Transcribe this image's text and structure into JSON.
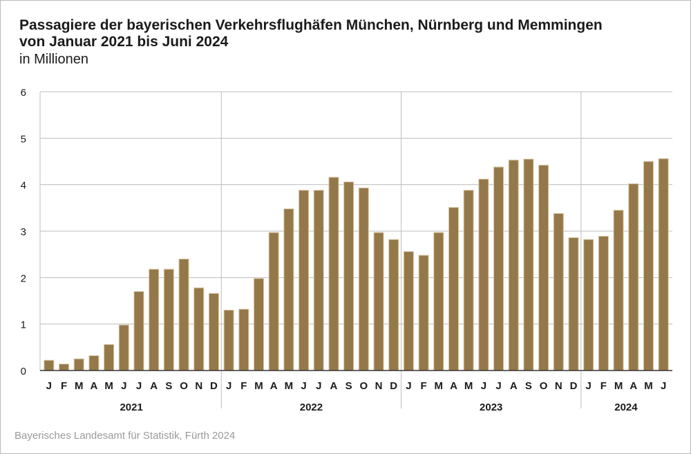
{
  "title_line1": "Passagiere der bayerischen Verkehrsflughäfen München, Nürnberg und Memmingen",
  "title_line2": "von Januar 2021 bis Juni 2024",
  "subtitle": "in Millionen",
  "source": "Bayerisches Landesamt für Statistik, Fürth 2024",
  "colors": {
    "bar": "#95784a",
    "bar_edge": "#d8c7a4",
    "grid": "#bdbdbd",
    "text": "#1a1a1a"
  },
  "chart_data": {
    "type": "bar",
    "title": "Passagiere der bayerischen Verkehrsflughäfen München, Nürnberg und Memmingen von Januar 2021 bis Juni 2024",
    "ylabel": "in Millionen",
    "ylim": [
      0,
      6
    ],
    "yticks": [
      0,
      1,
      2,
      3,
      4,
      5,
      6
    ],
    "grid": true,
    "categories": [
      "J",
      "F",
      "M",
      "A",
      "M",
      "J",
      "J",
      "A",
      "S",
      "O",
      "N",
      "D",
      "J",
      "F",
      "M",
      "A",
      "M",
      "J",
      "J",
      "A",
      "S",
      "O",
      "N",
      "D",
      "J",
      "F",
      "M",
      "A",
      "M",
      "J",
      "J",
      "A",
      "S",
      "O",
      "N",
      "D",
      "J",
      "F",
      "M",
      "A",
      "M",
      "J"
    ],
    "groups": [
      {
        "label": "2021",
        "count": 12
      },
      {
        "label": "2022",
        "count": 12
      },
      {
        "label": "2023",
        "count": 12
      },
      {
        "label": "2024",
        "count": 6
      }
    ],
    "values": [
      0.22,
      0.14,
      0.25,
      0.32,
      0.56,
      0.98,
      1.7,
      2.18,
      2.18,
      2.4,
      1.78,
      1.66,
      1.3,
      1.32,
      1.98,
      2.97,
      3.48,
      3.88,
      3.88,
      4.16,
      4.06,
      3.93,
      2.97,
      2.82,
      2.56,
      2.48,
      2.97,
      3.51,
      3.88,
      4.12,
      4.38,
      4.53,
      4.55,
      4.42,
      3.38,
      2.86,
      2.82,
      2.89,
      3.45,
      4.02,
      4.5,
      4.56
    ]
  }
}
